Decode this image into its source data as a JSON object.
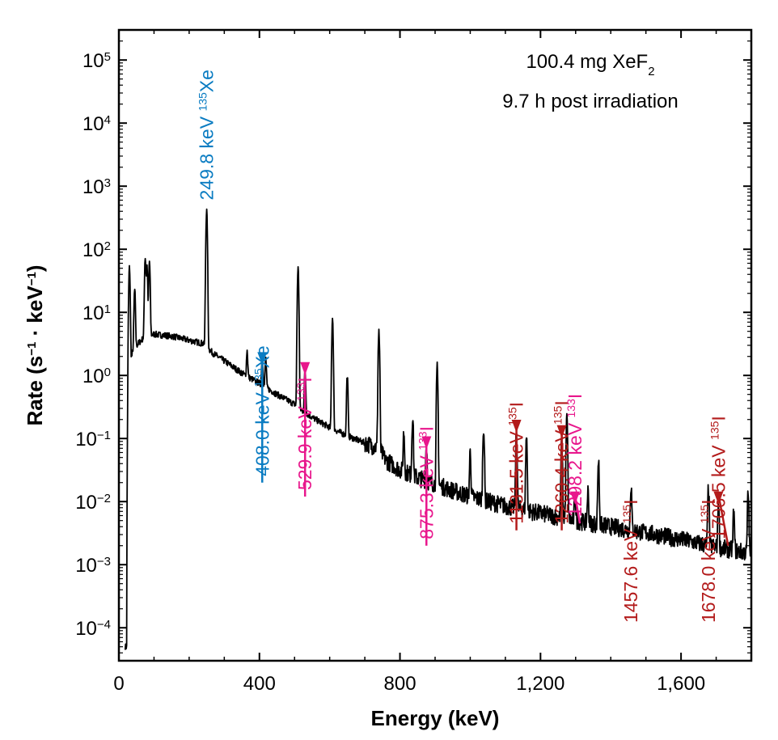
{
  "colors": {
    "spectrum": "#000000",
    "xe135": "#0a7cc2",
    "i133": "#e8178c",
    "i135": "#b31b1b"
  },
  "notes": [
    {
      "text": "100.4 mg XeF",
      "sub": "2"
    },
    {
      "text": "9.7 h post irradiation",
      "sub": ""
    }
  ],
  "chart_data": {
    "type": "line",
    "title": "",
    "xlabel": "Energy (keV)",
    "ylabel": "Rate (s−1 · keV−1)",
    "ylabel_parts": {
      "pre": "Rate (s",
      "sup1": "−1",
      "mid": " · keV",
      "sup2": "−1",
      "post": ")"
    },
    "xlim": [
      0,
      1800
    ],
    "ylim": [
      3e-05,
      300000
    ],
    "yscale": "log",
    "xticks": [
      0,
      400,
      800,
      1200,
      1600
    ],
    "xtick_labels": [
      "0",
      "400",
      "800",
      "1,200",
      "1,600"
    ],
    "yticks": [
      {
        "exp": -4,
        "label_base": "10",
        "label_exp": "−4"
      },
      {
        "exp": -3,
        "label_base": "10",
        "label_exp": "−3"
      },
      {
        "exp": -2,
        "label_base": "10",
        "label_exp": "−2"
      },
      {
        "exp": -1,
        "label_base": "10",
        "label_exp": "−1"
      },
      {
        "exp": 0,
        "label_base": "10",
        "label_exp": "0"
      },
      {
        "exp": 1,
        "label_base": "10",
        "label_exp": "1"
      },
      {
        "exp": 2,
        "label_base": "10",
        "label_exp": "2"
      },
      {
        "exp": 3,
        "label_base": "10",
        "label_exp": "3"
      },
      {
        "exp": 4,
        "label_base": "10",
        "label_exp": "4"
      },
      {
        "exp": 5,
        "label_base": "10",
        "label_exp": "5"
      }
    ],
    "grid": false,
    "continuum": [
      [
        22,
        5e-05
      ],
      [
        26,
        0.6
      ],
      [
        32,
        1.5
      ],
      [
        40,
        2.5
      ],
      [
        55,
        3.2
      ],
      [
        75,
        4.2
      ],
      [
        100,
        4.5
      ],
      [
        150,
        4.2
      ],
      [
        200,
        3.6
      ],
      [
        240,
        3.2
      ],
      [
        270,
        2.2
      ],
      [
        300,
        1.7
      ],
      [
        330,
        1.3
      ],
      [
        360,
        1.0
      ],
      [
        400,
        0.75
      ],
      [
        450,
        0.5
      ],
      [
        500,
        0.35
      ],
      [
        520,
        0.28
      ],
      [
        560,
        0.2
      ],
      [
        600,
        0.15
      ],
      [
        650,
        0.11
      ],
      [
        700,
        0.085
      ],
      [
        740,
        0.07
      ],
      [
        760,
        0.045
      ],
      [
        800,
        0.032
      ],
      [
        850,
        0.024
      ],
      [
        900,
        0.019
      ],
      [
        950,
        0.015
      ],
      [
        1000,
        0.012
      ],
      [
        1100,
        0.0085
      ],
      [
        1200,
        0.0065
      ],
      [
        1300,
        0.005
      ],
      [
        1400,
        0.004
      ],
      [
        1500,
        0.0032
      ],
      [
        1600,
        0.0025
      ],
      [
        1700,
        0.0019
      ],
      [
        1800,
        0.0015
      ]
    ],
    "peaks": [
      [
        30,
        50
      ],
      [
        45,
        20
      ],
      [
        75,
        70
      ],
      [
        80,
        50
      ],
      [
        87,
        60
      ],
      [
        248,
        8
      ],
      [
        249.8,
        400
      ],
      [
        365,
        1.5
      ],
      [
        408,
        1.3
      ],
      [
        418,
        1.2
      ],
      [
        510,
        50
      ],
      [
        529.9,
        1.0
      ],
      [
        608,
        8
      ],
      [
        650,
        0.9
      ],
      [
        740,
        5
      ],
      [
        811,
        0.1
      ],
      [
        836,
        0.2
      ],
      [
        875.3,
        0.06
      ],
      [
        906,
        1.2
      ],
      [
        1000,
        0.05
      ],
      [
        1038,
        0.15
      ],
      [
        1131.5,
        0.12
      ],
      [
        1160,
        0.1
      ],
      [
        1260.4,
        0.09
      ],
      [
        1275,
        0.2
      ],
      [
        1298.2,
        0.008
      ],
      [
        1335,
        0.01
      ],
      [
        1365,
        0.04
      ],
      [
        1457.6,
        0.015
      ],
      [
        1678.0,
        0.015
      ],
      [
        1706.5,
        0.008
      ],
      [
        1750,
        0.005
      ],
      [
        1791,
        0.012
      ]
    ],
    "annotations": [
      {
        "energy_label": "249.8 keV",
        "isotope_mass": "135",
        "isotope": "Xe",
        "peak_keV": 249.8,
        "group": "xe135",
        "arrow": false,
        "text_bottom": 0.0004
      },
      {
        "energy_label": "408.0 keV",
        "isotope_mass": "135",
        "isotope": "Xe",
        "peak_keV": 408.0,
        "group": "xe135",
        "arrow": true,
        "arrow_top": 0.02,
        "arrow_tip": 1.3
      },
      {
        "energy_label": "529.9 keV",
        "isotope_mass": "133",
        "isotope": "I",
        "peak_keV": 529.9,
        "group": "i133",
        "arrow": true,
        "arrow_top": 0.012,
        "arrow_tip": 0.9
      },
      {
        "energy_label": "875.3 keV",
        "isotope_mass": "133",
        "isotope": "I",
        "peak_keV": 875.3,
        "group": "i133",
        "arrow": true,
        "arrow_top": 0.002,
        "arrow_tip": 0.06
      },
      {
        "energy_label": "1131.5 keV",
        "isotope_mass": "135",
        "isotope": "I",
        "peak_keV": 1131.5,
        "group": "i135",
        "arrow": true,
        "arrow_top": 0.0035,
        "arrow_tip": 0.11
      },
      {
        "energy_label": "1260.4 keV",
        "isotope_mass": "135",
        "isotope": "I",
        "peak_keV": 1260.4,
        "group": "i135",
        "arrow": true,
        "arrow_top": 0.0035,
        "arrow_tip": 0.09
      },
      {
        "energy_label": "1298.2 keV",
        "isotope_mass": "133",
        "isotope": "I",
        "peak_keV": 1298.2,
        "group": "i133",
        "arrow": true,
        "arrow_top": 0.0045,
        "arrow_tip": 0.008
      },
      {
        "energy_label": "1457.6 keV",
        "isotope_mass": "135",
        "isotope": "I",
        "peak_keV": 1457.6,
        "group": "i135",
        "arrow": false,
        "text_bottom": 0.00012
      },
      {
        "energy_label": "1678.0 keV",
        "isotope_mass": "135",
        "isotope": "I",
        "peak_keV": 1678.0,
        "group": "i135",
        "arrow": false,
        "text_bottom": 0.00012
      },
      {
        "energy_label": "1706.5 keV",
        "isotope_mass": "135",
        "isotope": "I",
        "peak_keV": 1706.5,
        "group": "i135",
        "arrow": true,
        "arrow_top": 0.002,
        "arrow_tip": 0.008
      }
    ]
  }
}
